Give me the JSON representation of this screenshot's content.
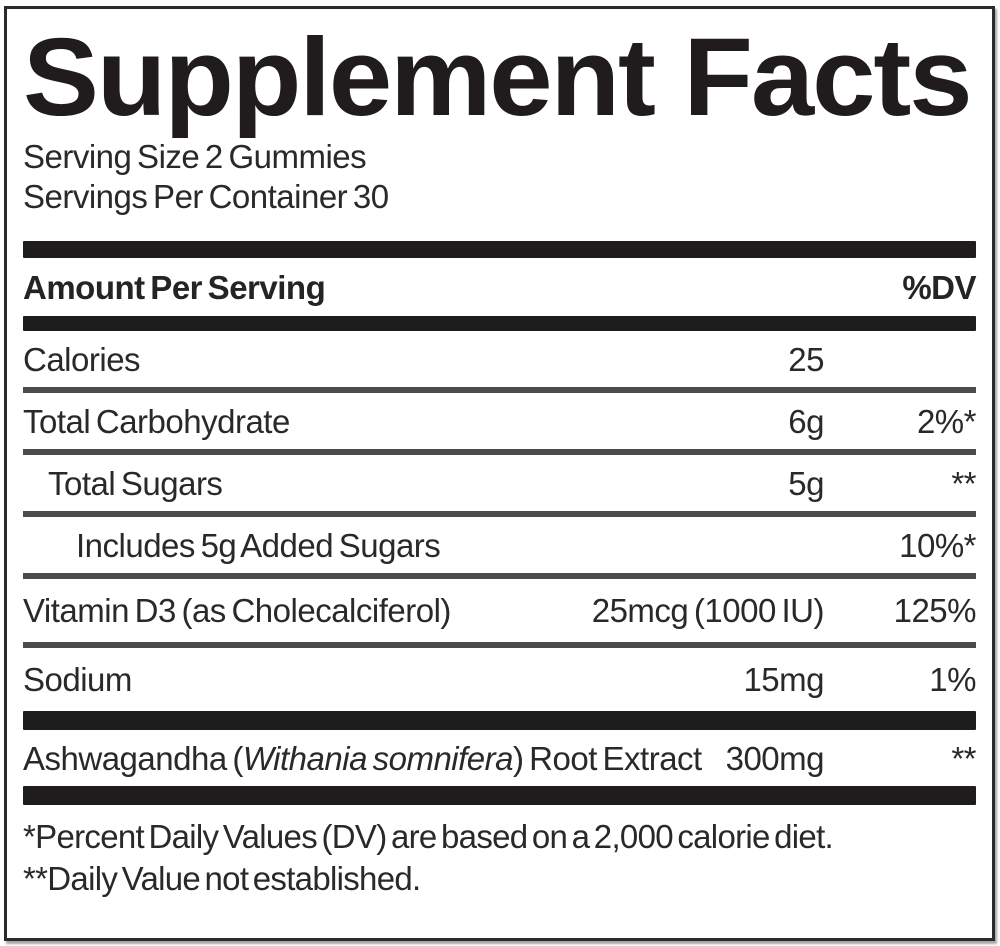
{
  "label": {
    "title": "Supplement Facts",
    "serving_size": "Serving Size 2 Gummies",
    "servings_per_container": "Servings Per Container 30",
    "header": {
      "amount_per_serving": "Amount Per Serving",
      "dv": "%DV"
    },
    "rows": [
      {
        "name": "Calories",
        "amount": "25",
        "dv": "",
        "indent": 0
      },
      {
        "name": "Total Carbohydrate",
        "amount": "6g",
        "dv": "2%*",
        "indent": 0
      },
      {
        "name": "Total Sugars",
        "amount": "5g",
        "dv": "**",
        "indent": 1
      },
      {
        "name": "Includes 5g Added Sugars",
        "amount": "",
        "dv": "10%*",
        "indent": 2
      },
      {
        "name": "Vitamin D3 (as Cholecalciferol)",
        "amount": "25mcg (1000 IU)",
        "dv": "125%",
        "indent": 0
      },
      {
        "name": "Sodium",
        "amount": "15mg",
        "dv": "1%",
        "indent": 0
      },
      {
        "name_prefix": "Ashwagandha (",
        "name_italic": "Withania somnifera",
        "name_suffix": ") Root Extract",
        "amount": "300mg",
        "dv": "**",
        "indent": 0
      }
    ],
    "footnotes": [
      "*Percent Daily Values (DV) are based on a 2,000 calorie diet.",
      "**Daily Value not established."
    ],
    "colors": {
      "text": "#232024",
      "bar": "#1f1c1d",
      "rule": "#4b4b4d",
      "border": "#2b2b2b",
      "background": "#ffffff"
    }
  }
}
